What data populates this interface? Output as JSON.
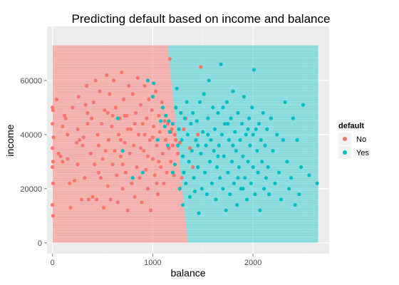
{
  "chart_data": {
    "type": "scatter",
    "title": "Predicting default based on income and balance",
    "xlabel": "balance",
    "ylabel": "income",
    "xlim": [
      -55,
      2760
    ],
    "ylim": [
      -4000,
      80000
    ],
    "x_ticks": [
      0,
      1000,
      2000
    ],
    "y_ticks": [
      0,
      20000,
      40000,
      60000
    ],
    "grid": true,
    "legend": {
      "title": "default",
      "placement": "right",
      "entries": [
        "No",
        "Yes"
      ]
    },
    "colors": {
      "No": "#F8766D",
      "Yes": "#00BFC4",
      "panel_background": "#EBEBEB",
      "grid": "#FFFFFF"
    },
    "decision_regions": {
      "x_range": [
        0,
        2650
      ],
      "y_range": [
        0,
        73000
      ],
      "boundary": [
        [
          1150,
          73000
        ],
        [
          1350,
          0
        ]
      ],
      "left_class": "No",
      "right_class": "Yes"
    },
    "series": [
      {
        "name": "No",
        "points": [
          [
            0,
            50000
          ],
          [
            5,
            49000
          ],
          [
            0,
            44000
          ],
          [
            10,
            39000
          ],
          [
            0,
            35000
          ],
          [
            5,
            30000
          ],
          [
            0,
            28000
          ],
          [
            5,
            22000
          ],
          [
            0,
            14000
          ],
          [
            5,
            10000
          ],
          [
            40,
            53000
          ],
          [
            60,
            33000
          ],
          [
            80,
            32000
          ],
          [
            100,
            30000
          ],
          [
            100,
            43000
          ],
          [
            120,
            47000
          ],
          [
            130,
            46000
          ],
          [
            150,
            40000
          ],
          [
            170,
            22000
          ],
          [
            180,
            13000
          ],
          [
            200,
            50000
          ],
          [
            220,
            23000
          ],
          [
            240,
            37000
          ],
          [
            250,
            42000
          ],
          [
            260,
            54000
          ],
          [
            270,
            38000
          ],
          [
            290,
            16000
          ],
          [
            310,
            39000
          ],
          [
            320,
            24000
          ],
          [
            330,
            51000
          ],
          [
            340,
            58000
          ],
          [
            350,
            48000
          ],
          [
            360,
            16000
          ],
          [
            380,
            33000
          ],
          [
            390,
            46000
          ],
          [
            400,
            17000
          ],
          [
            410,
            52000
          ],
          [
            420,
            29000
          ],
          [
            430,
            60000
          ],
          [
            440,
            16000
          ],
          [
            450,
            40000
          ],
          [
            460,
            36000
          ],
          [
            470,
            56000
          ],
          [
            480,
            24000
          ],
          [
            490,
            44000
          ],
          [
            500,
            31000
          ],
          [
            510,
            13000
          ],
          [
            520,
            49000
          ],
          [
            530,
            34000
          ],
          [
            540,
            62000
          ],
          [
            550,
            21000
          ],
          [
            560,
            38000
          ],
          [
            570,
            55000
          ],
          [
            580,
            16000
          ],
          [
            590,
            43000
          ],
          [
            600,
            29000
          ],
          [
            610,
            60000
          ],
          [
            620,
            34000
          ],
          [
            630,
            50000
          ],
          [
            640,
            25000
          ],
          [
            650,
            15000
          ],
          [
            660,
            40000
          ],
          [
            670,
            46000
          ],
          [
            680,
            32000
          ],
          [
            690,
            63000
          ],
          [
            700,
            20000
          ],
          [
            710,
            53000
          ],
          [
            720,
            37000
          ],
          [
            730,
            26000
          ],
          [
            740,
            47000
          ],
          [
            750,
            12000
          ],
          [
            760,
            58000
          ],
          [
            770,
            33000
          ],
          [
            780,
            42000
          ],
          [
            790,
            22000
          ],
          [
            800,
            55000
          ],
          [
            810,
            36000
          ],
          [
            820,
            17000
          ],
          [
            830,
            48000
          ],
          [
            840,
            28000
          ],
          [
            850,
            61000
          ],
          [
            860,
            40000
          ],
          [
            870,
            24000
          ],
          [
            880,
            51000
          ],
          [
            890,
            15000
          ],
          [
            900,
            44000
          ],
          [
            910,
            34000
          ],
          [
            920,
            58000
          ],
          [
            930,
            27000
          ],
          [
            940,
            46000
          ],
          [
            950,
            20000
          ],
          [
            960,
            53000
          ],
          [
            970,
            38000
          ],
          [
            980,
            12000
          ],
          [
            990,
            49000
          ],
          [
            1000,
            31000
          ],
          [
            1010,
            43000
          ],
          [
            1020,
            25000
          ],
          [
            1030,
            56000
          ],
          [
            1040,
            36000
          ],
          [
            1050,
            18000
          ],
          [
            1060,
            47000
          ],
          [
            1070,
            41000
          ],
          [
            1080,
            28000
          ],
          [
            1090,
            52000
          ],
          [
            1100,
            33000
          ],
          [
            1110,
            22000
          ],
          [
            1120,
            45000
          ],
          [
            1130,
            38000
          ],
          [
            1140,
            26000
          ],
          [
            1150,
            44000
          ],
          [
            1160,
            35000
          ],
          [
            1170,
            68000
          ],
          [
            1180,
            30000
          ],
          [
            1190,
            42000
          ],
          [
            1200,
            36000
          ],
          [
            1210,
            25000
          ],
          [
            1220,
            40000
          ],
          [
            1230,
            38000
          ],
          [
            1250,
            33000
          ],
          [
            1270,
            37000
          ],
          [
            1290,
            24000
          ],
          [
            1310,
            42000
          ],
          [
            1330,
            46000
          ],
          [
            1370,
            35000
          ],
          [
            1400,
            28000
          ],
          [
            1450,
            40000
          ],
          [
            1480,
            65000
          ],
          [
            250,
            29000
          ],
          [
            150,
            31000
          ],
          [
            350,
            44000
          ],
          [
            550,
            48000
          ],
          [
            750,
            42000
          ],
          [
            950,
            32000
          ],
          [
            720,
            47000
          ],
          [
            880,
            35000
          ],
          [
            1040,
            22000
          ],
          [
            680,
            38000
          ],
          [
            820,
            44000
          ],
          [
            460,
            26000
          ],
          [
            600,
            47000
          ],
          [
            1000,
            39000
          ],
          [
            1180,
            41000
          ],
          [
            300,
            36000
          ],
          [
            700,
            29000
          ],
          [
            1060,
            30000
          ],
          [
            920,
            40000
          ]
        ]
      },
      {
        "name": "Yes",
        "points": [
          [
            650,
            46000
          ],
          [
            700,
            34000
          ],
          [
            800,
            24000
          ],
          [
            900,
            26000
          ],
          [
            950,
            60000
          ],
          [
            1000,
            54000
          ],
          [
            1010,
            59000
          ],
          [
            1050,
            38000
          ],
          [
            1080,
            45000
          ],
          [
            1100,
            50000
          ],
          [
            1120,
            43000
          ],
          [
            1130,
            47000
          ],
          [
            1150,
            36000
          ],
          [
            1160,
            45000
          ],
          [
            1170,
            41000
          ],
          [
            1200,
            44000
          ],
          [
            1200,
            26000
          ],
          [
            1220,
            29000
          ],
          [
            1230,
            50000
          ],
          [
            1240,
            57000
          ],
          [
            1250,
            36000
          ],
          [
            1260,
            42000
          ],
          [
            1270,
            20000
          ],
          [
            1280,
            48000
          ],
          [
            1290,
            38000
          ],
          [
            1300,
            32000
          ],
          [
            1300,
            14000
          ],
          [
            1310,
            26000
          ],
          [
            1320,
            46000
          ],
          [
            1330,
            22000
          ],
          [
            1340,
            52000
          ],
          [
            1350,
            40000
          ],
          [
            1360,
            30000
          ],
          [
            1370,
            17000
          ],
          [
            1380,
            44000
          ],
          [
            1390,
            34000
          ],
          [
            1400,
            48000
          ],
          [
            1410,
            24000
          ],
          [
            1420,
            19000
          ],
          [
            1430,
            38000
          ],
          [
            1440,
            45000
          ],
          [
            1450,
            28000
          ],
          [
            1460,
            11000
          ],
          [
            1470,
            52000
          ],
          [
            1480,
            33000
          ],
          [
            1490,
            20000
          ],
          [
            1500,
            41000
          ],
          [
            1510,
            55000
          ],
          [
            1520,
            26000
          ],
          [
            1530,
            36000
          ],
          [
            1540,
            18000
          ],
          [
            1550,
            46000
          ],
          [
            1560,
            60000
          ],
          [
            1570,
            30000
          ],
          [
            1580,
            38000
          ],
          [
            1590,
            22000
          ],
          [
            1600,
            50000
          ],
          [
            1610,
            34000
          ],
          [
            1620,
            42000
          ],
          [
            1630,
            16000
          ],
          [
            1640,
            28000
          ],
          [
            1650,
            48000
          ],
          [
            1660,
            36000
          ],
          [
            1670,
            24000
          ],
          [
            1680,
            66000
          ],
          [
            1690,
            40000
          ],
          [
            1700,
            20000
          ],
          [
            1710,
            32000
          ],
          [
            1720,
            44000
          ],
          [
            1730,
            12000
          ],
          [
            1740,
            52000
          ],
          [
            1750,
            26000
          ],
          [
            1760,
            38000
          ],
          [
            1770,
            18000
          ],
          [
            1780,
            46000
          ],
          [
            1790,
            30000
          ],
          [
            1800,
            56000
          ],
          [
            1810,
            22000
          ],
          [
            1820,
            41000
          ],
          [
            1830,
            34000
          ],
          [
            1840,
            14000
          ],
          [
            1850,
            48000
          ],
          [
            1860,
            28000
          ],
          [
            1870,
            38000
          ],
          [
            1880,
            20000
          ],
          [
            1890,
            44000
          ],
          [
            1900,
            32000
          ],
          [
            1910,
            54000
          ],
          [
            1920,
            24000
          ],
          [
            1930,
            40000
          ],
          [
            1940,
            16000
          ],
          [
            1950,
            30000
          ],
          [
            1960,
            46000
          ],
          [
            1970,
            36000
          ],
          [
            1980,
            22000
          ],
          [
            1990,
            50000
          ],
          [
            2000,
            28000
          ],
          [
            2010,
            64000
          ],
          [
            2020,
            18000
          ],
          [
            2030,
            42000
          ],
          [
            2040,
            34000
          ],
          [
            2050,
            26000
          ],
          [
            2060,
            44000
          ],
          [
            2070,
            12000
          ],
          [
            2080,
            38000
          ],
          [
            2090,
            30000
          ],
          [
            2100,
            48000
          ],
          [
            2110,
            20000
          ],
          [
            2120,
            36000
          ],
          [
            2130,
            24000
          ],
          [
            2140,
            42000
          ],
          [
            2150,
            28000
          ],
          [
            2160,
            18000
          ],
          [
            2180,
            46000
          ],
          [
            2200,
            34000
          ],
          [
            2220,
            22000
          ],
          [
            2240,
            40000
          ],
          [
            2260,
            26000
          ],
          [
            2280,
            16000
          ],
          [
            2300,
            38000
          ],
          [
            2320,
            52000
          ],
          [
            2340,
            30000
          ],
          [
            2360,
            20000
          ],
          [
            2380,
            24000
          ],
          [
            2400,
            46000
          ],
          [
            2420,
            14000
          ],
          [
            2440,
            38000
          ],
          [
            2460,
            18000
          ],
          [
            2480,
            28000
          ],
          [
            2500,
            51000
          ],
          [
            2560,
            25000
          ],
          [
            2640,
            22000
          ],
          [
            1550,
            40000
          ],
          [
            1650,
            32000
          ],
          [
            1750,
            44000
          ],
          [
            1850,
            24000
          ],
          [
            1950,
            42000
          ],
          [
            1450,
            36000
          ],
          [
            1700,
            50000
          ],
          [
            1800,
            36000
          ],
          [
            1900,
            20000
          ],
          [
            2000,
            40000
          ]
        ]
      }
    ]
  }
}
